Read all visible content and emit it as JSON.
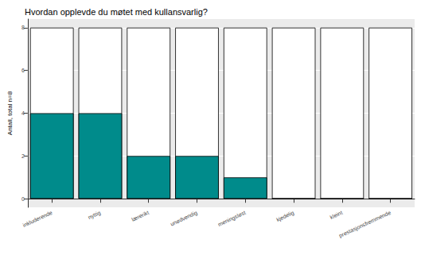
{
  "chart_data": {
    "type": "bar",
    "title": "Hvordan opplevde du møtet med kullansvarlig?",
    "y_label": "Antall, total n=8",
    "categories": [
      "inkluderende",
      "nyttig",
      "lærerikt",
      "unødvendig",
      "meningsløst",
      "kjedelig",
      "kleint",
      "prestasjonsfremmende"
    ],
    "values": [
      4,
      4,
      2,
      2,
      1,
      0,
      0,
      0
    ],
    "total": 8,
    "color": "#008B8B",
    "ylim": [
      -0.4,
      8.4
    ],
    "yticks": [
      0,
      2,
      4,
      6,
      8
    ],
    "grid": true
  }
}
